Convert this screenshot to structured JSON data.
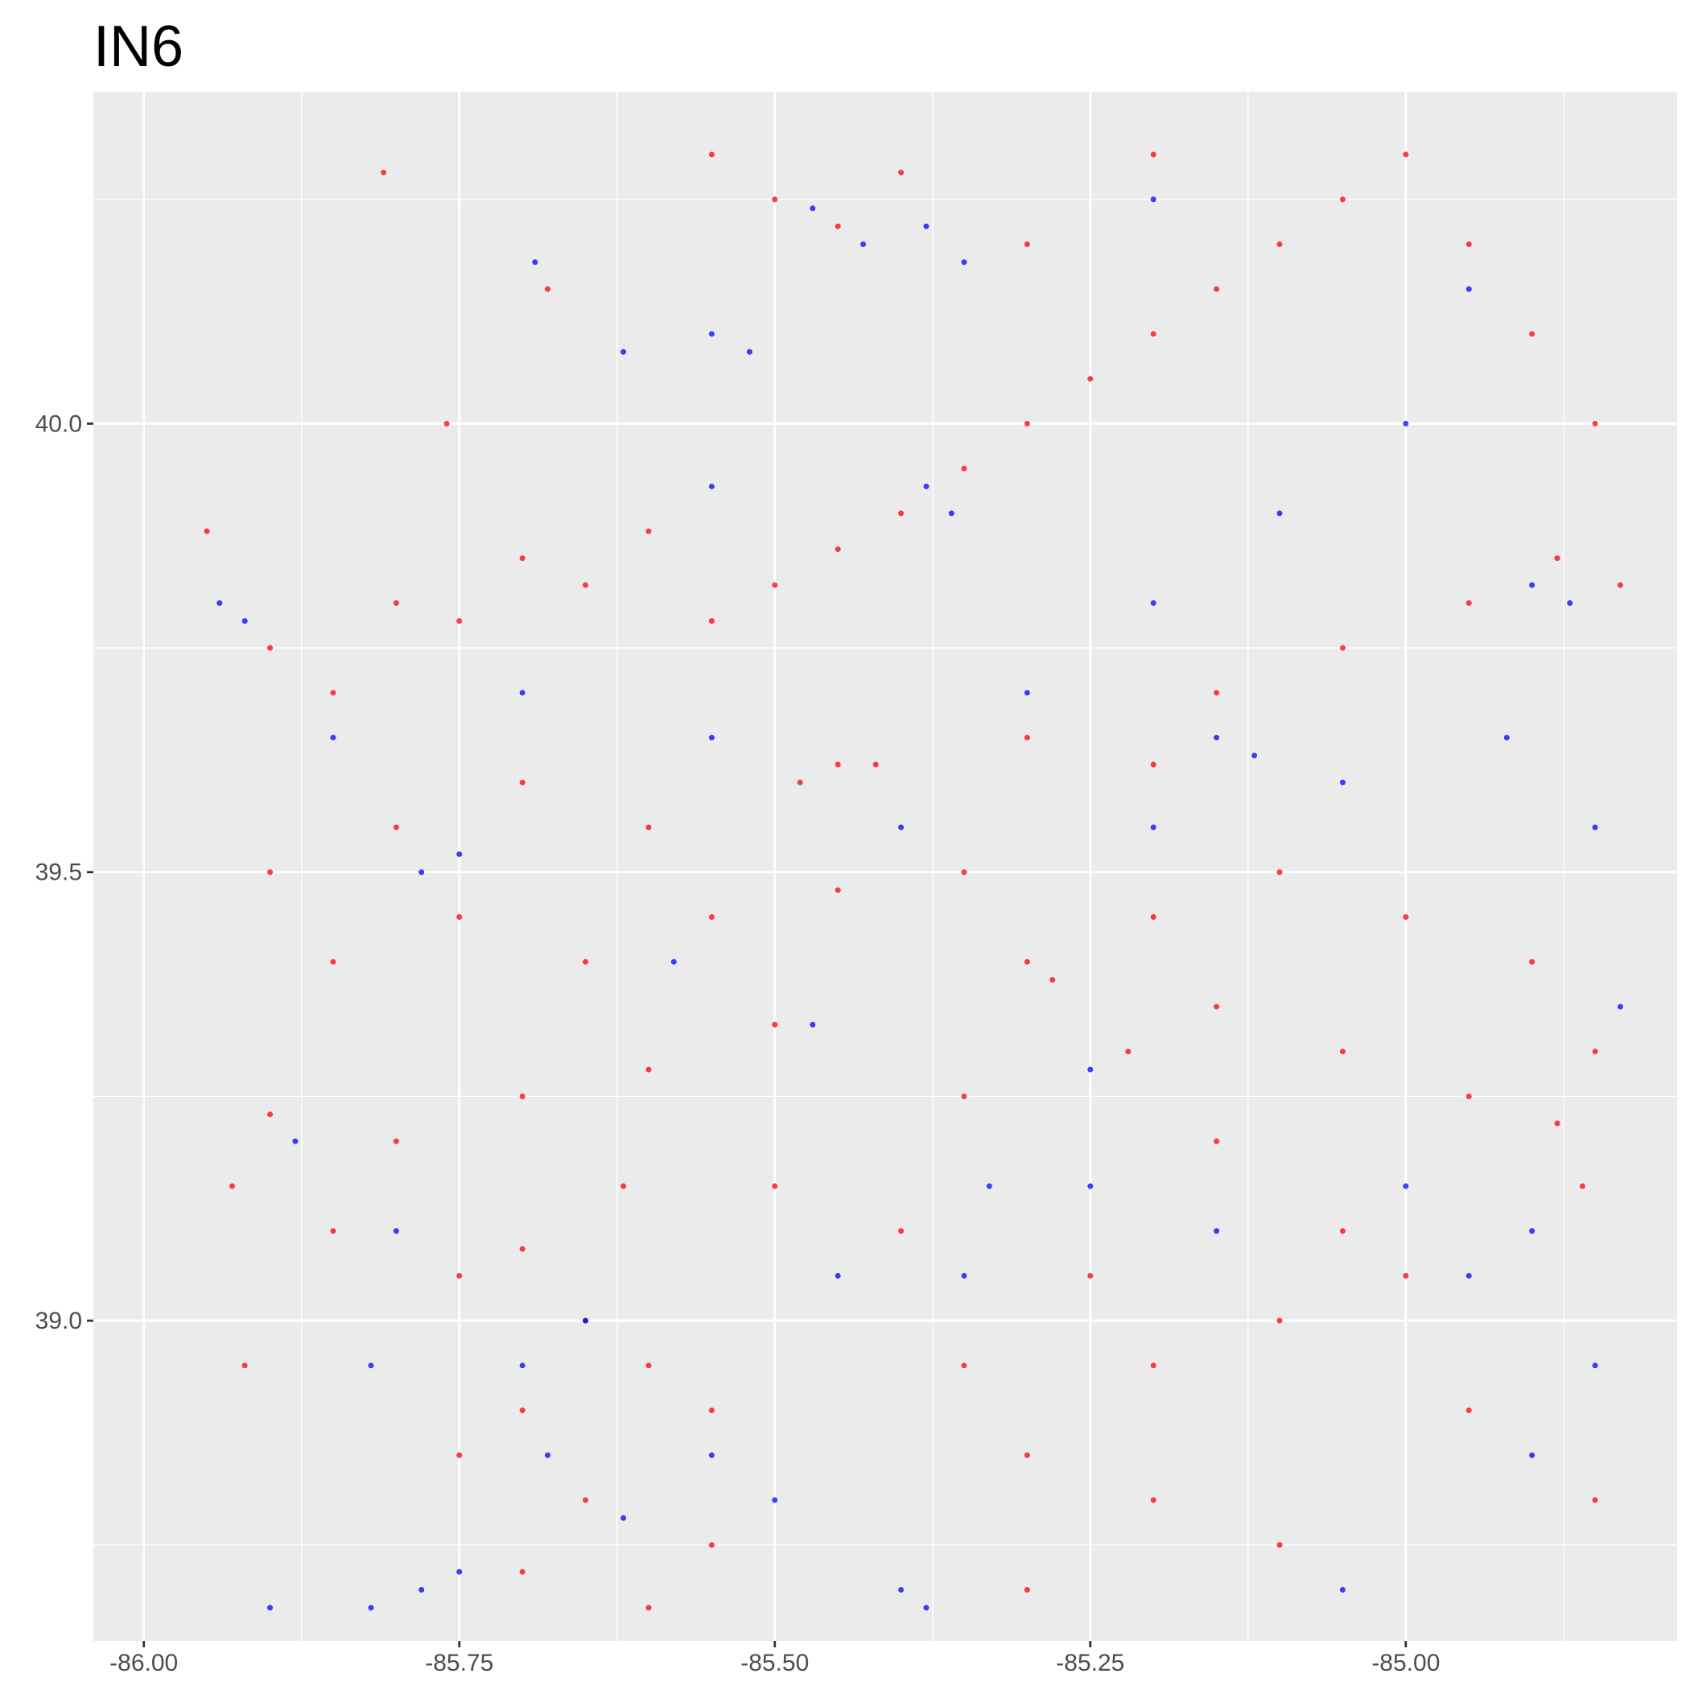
{
  "chart_data": {
    "type": "scatter",
    "title": "IN6",
    "xlim": [
      -86.04,
      -84.785
    ],
    "ylim": [
      38.643,
      40.37
    ],
    "xticks": [
      {
        "value": -86,
        "label": "-86.00"
      },
      {
        "value": -85.75,
        "label": "-85.75"
      },
      {
        "value": -85.5,
        "label": "-85.50"
      },
      {
        "value": -85.25,
        "label": "-85.25"
      },
      {
        "value": -85,
        "label": "-85.00"
      }
    ],
    "yticks": [
      {
        "value": 40,
        "label": "40.0"
      },
      {
        "value": 39.5,
        "label": "39.5"
      },
      {
        "value": 39,
        "label": "39.0"
      }
    ],
    "xminor": [
      -85.875,
      -85.625,
      -85.375,
      -85.125,
      -84.875
    ],
    "yminor": [
      40.25,
      39.75,
      39.25,
      38.75
    ],
    "grid": true,
    "series": [
      {
        "color": "#ff0000",
        "x": [
          -85.95,
          -85.9,
          -85.85,
          -85.8,
          -85.75,
          -85.7,
          -85.65,
          -85.6,
          -85.55,
          -85.5,
          -85.45,
          -85.4,
          -85.35,
          -85.3,
          -85.25,
          -85.2,
          -85.15,
          -85.1,
          -85.05,
          -85.0,
          -84.95,
          -84.9,
          -84.85,
          -85.55,
          -85.5,
          -85.45,
          -85.4,
          -85.3,
          -85.2,
          -84.88,
          -84.83,
          -84.95,
          -85.05,
          -85.15,
          -85.2,
          -85.3,
          -85.45,
          -85.48,
          -85.6,
          -85.7,
          -85.8,
          -85.9,
          -85.85,
          -85.75,
          -85.65,
          -85.55,
          -85.45,
          -85.35,
          -85.3,
          -85.2,
          -85.1,
          -85.0,
          -84.9,
          -84.85,
          -84.88,
          -84.95,
          -85.05,
          -85.15,
          -85.22,
          -85.35,
          -85.5,
          -85.6,
          -85.7,
          -85.8,
          -85.9,
          -85.93,
          -85.85,
          -85.75,
          -85.7,
          -85.65,
          -85.6,
          -85.55,
          -85.7,
          -85.75,
          -85.65,
          -85.55,
          -85.6,
          -85.7,
          -85.35,
          -85.3,
          -85.25,
          -85.2,
          -85.1,
          -85.0,
          -84.95,
          -84.85,
          -85.1,
          -85.2,
          -85.3,
          -85.81,
          -85.68,
          -85.76,
          -85.92,
          -85.42,
          -85.28,
          -84.86,
          -85.05,
          -85.15,
          -85.5,
          -85.4,
          -85.62
        ],
        "y": [
          39.88,
          39.75,
          39.7,
          39.8,
          39.78,
          39.85,
          39.82,
          39.88,
          39.78,
          39.82,
          39.86,
          39.9,
          39.95,
          40.0,
          40.05,
          40.1,
          40.15,
          40.2,
          40.25,
          40.3,
          40.2,
          40.1,
          40.0,
          40.3,
          40.25,
          40.22,
          40.28,
          40.2,
          40.3,
          39.85,
          39.82,
          39.8,
          39.75,
          39.7,
          39.62,
          39.65,
          39.62,
          39.6,
          39.55,
          39.6,
          39.55,
          39.5,
          39.4,
          39.45,
          39.4,
          39.45,
          39.48,
          39.5,
          39.4,
          39.45,
          39.5,
          39.45,
          39.4,
          39.3,
          39.22,
          39.25,
          39.3,
          39.35,
          39.3,
          39.25,
          39.33,
          39.28,
          39.25,
          39.2,
          39.23,
          39.15,
          39.1,
          39.05,
          39.08,
          39.0,
          38.95,
          38.9,
          38.9,
          38.85,
          38.8,
          38.75,
          38.68,
          38.72,
          38.95,
          38.85,
          39.05,
          38.95,
          39.0,
          39.05,
          38.9,
          38.8,
          38.75,
          38.8,
          38.7,
          40.28,
          40.15,
          40.0,
          38.95,
          39.62,
          39.38,
          39.15,
          39.1,
          39.2,
          39.15,
          39.1,
          39.15
        ]
      },
      {
        "color": "#0000ff",
        "x": [
          -85.43,
          -85.38,
          -85.35,
          -85.47,
          -85.55,
          -85.52,
          -85.38,
          -85.36,
          -84.9,
          -84.87,
          -85.15,
          -85.12,
          -85.75,
          -85.78,
          -85.47,
          -85.25,
          -85.65,
          -85.7,
          -85.78,
          -85.82,
          -85.75,
          -85.4,
          -85.38,
          -85.05,
          -84.9,
          -84.85,
          -84.95,
          -85.0,
          -85.15,
          -85.25,
          -85.35,
          -85.5,
          -85.55,
          -85.62,
          -85.68,
          -85.8,
          -85.88,
          -85.92,
          -85.85,
          -85.7,
          -85.55,
          -85.4,
          -85.2,
          -85.05,
          -84.92,
          -84.85,
          -85.1,
          -85.0,
          -84.95,
          -85.2,
          -85.55,
          -85.69,
          -85.62,
          -85.94,
          -85.82,
          -85.9,
          -85.3,
          -85.2,
          -84.83,
          -84.9,
          -85.45,
          -85.58,
          -85.33
        ],
        "y": [
          40.2,
          40.22,
          40.18,
          40.24,
          40.1,
          40.08,
          39.93,
          39.9,
          39.82,
          39.8,
          39.65,
          39.63,
          39.52,
          39.5,
          39.33,
          39.28,
          39.0,
          38.95,
          38.7,
          38.68,
          38.72,
          38.7,
          38.68,
          38.7,
          38.85,
          38.95,
          39.05,
          39.15,
          39.1,
          39.15,
          39.05,
          38.8,
          38.85,
          38.78,
          38.85,
          39.1,
          39.2,
          39.78,
          39.65,
          39.7,
          39.65,
          39.55,
          39.55,
          39.6,
          39.65,
          39.55,
          39.9,
          40.0,
          40.15,
          40.25,
          39.93,
          40.18,
          40.08,
          39.8,
          38.95,
          38.68,
          39.7,
          39.8,
          39.35,
          39.1,
          39.05,
          39.4,
          39.15
        ]
      }
    ]
  }
}
